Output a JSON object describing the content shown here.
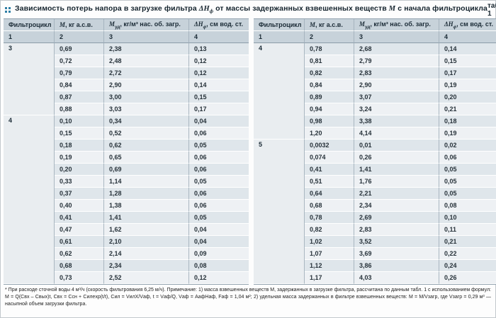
{
  "accent_color": "#2f7fa5",
  "header": {
    "title": {
      "part1": "Зависимость потерь напора в загрузке фильтра ",
      "sym1": "ΔH",
      "sym1_sub": "ф",
      "part2": " от массы задержанных взвешенных веществ ",
      "sym2": "M",
      "part3": " с начала фильтроцикла"
    },
    "table_ref": "табл. 1",
    "icon": "table-marker-icon"
  },
  "columns": [
    {
      "label": "Фильтроцикл"
    },
    {
      "sym": "M",
      "rest": ", кг а.с.в."
    },
    {
      "sym": "M",
      "sub": "уд",
      "rest": ", кг/м³ нас. об. загр."
    },
    {
      "sym": "ΔH",
      "sub": "ф",
      "rest": ", см вод. ст."
    }
  ],
  "numbering": [
    "1",
    "2",
    "3",
    "4"
  ],
  "tables": [
    {
      "groups": [
        {
          "cycle": "3",
          "rows": [
            [
              "0,69",
              "2,38",
              "0,13"
            ],
            [
              "0,72",
              "2,48",
              "0,12"
            ],
            [
              "0,79",
              "2,72",
              "0,12"
            ],
            [
              "0,84",
              "2,90",
              "0,14"
            ],
            [
              "0,87",
              "3,00",
              "0,15"
            ],
            [
              "0,88",
              "3,03",
              "0,17"
            ]
          ]
        },
        {
          "cycle": "4",
          "rows": [
            [
              "0,10",
              "0,34",
              "0,04"
            ],
            [
              "0,15",
              "0,52",
              "0,06"
            ],
            [
              "0,18",
              "0,62",
              "0,05"
            ],
            [
              "0,19",
              "0,65",
              "0,06"
            ],
            [
              "0,20",
              "0,69",
              "0,06"
            ],
            [
              "0,33",
              "1,14",
              "0,05"
            ],
            [
              "0,37",
              "1,28",
              "0,06"
            ],
            [
              "0,40",
              "1,38",
              "0,06"
            ],
            [
              "0,41",
              "1,41",
              "0,05"
            ],
            [
              "0,47",
              "1,62",
              "0,04"
            ],
            [
              "0,61",
              "2,10",
              "0,04"
            ],
            [
              "0,62",
              "2,14",
              "0,09"
            ],
            [
              "0,68",
              "2,34",
              "0,08"
            ],
            [
              "0,73",
              "2,52",
              "0,12"
            ]
          ]
        }
      ]
    },
    {
      "groups": [
        {
          "cycle": "4",
          "rows": [
            [
              "0,78",
              "2,68",
              "0,14"
            ],
            [
              "0,81",
              "2,79",
              "0,15"
            ],
            [
              "0,82",
              "2,83",
              "0,17"
            ],
            [
              "0,84",
              "2,90",
              "0,19"
            ],
            [
              "0,89",
              "3,07",
              "0,20"
            ],
            [
              "0,94",
              "3,24",
              "0,21"
            ],
            [
              "0,98",
              "3,38",
              "0,18"
            ],
            [
              "1,20",
              "4,14",
              "0,19"
            ]
          ]
        },
        {
          "cycle": "5",
          "rows": [
            [
              "0,0032",
              "0,01",
              "0,02"
            ],
            [
              "0,074",
              "0,26",
              "0,06"
            ],
            [
              "0,41",
              "1,41",
              "0,05"
            ],
            [
              "0,51",
              "1,76",
              "0,05"
            ],
            [
              "0,64",
              "2,21",
              "0,05"
            ],
            [
              "0,68",
              "2,34",
              "0,08"
            ],
            [
              "0,78",
              "2,69",
              "0,10"
            ],
            [
              "0,82",
              "2,83",
              "0,11"
            ],
            [
              "1,02",
              "3,52",
              "0,21"
            ],
            [
              "1,07",
              "3,69",
              "0,22"
            ],
            [
              "1,12",
              "3,86",
              "0,24"
            ],
            [
              "1,17",
              "4,03",
              "0,26"
            ]
          ]
        }
      ]
    }
  ],
  "footnote": {
    "text": "* При расходе сточной воды 4 м³/ч (скорость фильтрования 6,25 м/ч). Примечание: 1) масса взвешенных веществ M, задержанных в загрузке фильтра, рассчитана по данным табл. 1 с использованием формул: M = Q(Cвх – Cвых)t, Cвх = Cсн + Cилexp(t/t), Cил = VилX/Vаф, t = Vаф/Q, Vаф = AафHаф, Fаф = 1,04 м²; 2) удельная масса задержанных в фильтре взвешенных веществ: M = M/Vзагр, где Vзагр = 0,29 м³ — насыпной объем загрузки фильтра."
  }
}
